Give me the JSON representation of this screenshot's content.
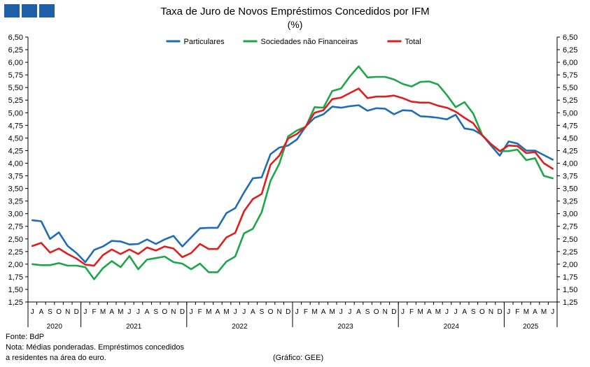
{
  "logo": {
    "icon": "logo-squares-icon",
    "color": "#1f5fa8"
  },
  "footer": {
    "source": "Fonte: BdP",
    "note_line1": "Nota: Médias ponderadas. Empréstimos concedidos",
    "note_line2": "a residentes na área do euro.",
    "credit": "(Gráfico: GEE)"
  },
  "chart_data": {
    "type": "line",
    "title": "Taxa de Juro de Novos Empréstimos  Concedidos por IFM",
    "subtitle": "(%)",
    "legend_position": "top-center",
    "grid": false,
    "ylim": [
      1.25,
      6.5
    ],
    "y_ticks": [
      "1,25",
      "1,50",
      "1,75",
      "2,00",
      "2,25",
      "2,50",
      "2,75",
      "3,00",
      "3,25",
      "3,50",
      "3,75",
      "4,00",
      "4,25",
      "4,50",
      "4,75",
      "5,00",
      "5,25",
      "5,50",
      "5,75",
      "6,00",
      "6,25",
      "6,50"
    ],
    "x_month_labels": [
      "J",
      "A",
      "S",
      "O",
      "N",
      "D",
      "J",
      "F",
      "M",
      "A",
      "M",
      "J",
      "J",
      "A",
      "S",
      "O",
      "N",
      "D",
      "J",
      "F",
      "M",
      "A",
      "M",
      "J",
      "J",
      "A",
      "S",
      "O",
      "N",
      "D",
      "J",
      "F",
      "M",
      "A",
      "M",
      "J",
      "J",
      "A",
      "S",
      "O",
      "N",
      "D",
      "J",
      "F",
      "M",
      "A",
      "M",
      "J",
      "J",
      "A",
      "S",
      "O",
      "N",
      "D",
      "J",
      "F",
      "M",
      "A",
      "M",
      "J"
    ],
    "years": [
      {
        "label": "2020",
        "months": 6
      },
      {
        "label": "2021",
        "months": 12
      },
      {
        "label": "2022",
        "months": 12
      },
      {
        "label": "2023",
        "months": 12
      },
      {
        "label": "2024",
        "months": 12
      },
      {
        "label": "2025",
        "months": 6
      }
    ],
    "series": [
      {
        "name": "Particulares",
        "color": "#1f6db5",
        "values": [
          2.87,
          2.85,
          2.5,
          2.63,
          2.36,
          2.22,
          2.04,
          2.28,
          2.35,
          2.46,
          2.45,
          2.39,
          2.4,
          2.49,
          2.4,
          2.49,
          2.56,
          2.35,
          2.53,
          2.71,
          2.72,
          2.72,
          3.01,
          3.11,
          3.42,
          3.7,
          3.72,
          4.18,
          4.31,
          4.35,
          4.47,
          4.73,
          4.9,
          4.97,
          5.12,
          5.1,
          5.13,
          5.15,
          5.04,
          5.09,
          5.08,
          4.97,
          5.05,
          5.04,
          4.93,
          4.92,
          4.9,
          4.87,
          4.96,
          4.69,
          4.66,
          4.56,
          4.35,
          4.15,
          4.43,
          4.39,
          4.25,
          4.25,
          4.16,
          4.07
        ]
      },
      {
        "name": "Sociedades não Financeiras",
        "color": "#1fa64a",
        "values": [
          2.0,
          1.98,
          1.98,
          2.02,
          1.97,
          1.97,
          1.94,
          1.7,
          1.92,
          2.06,
          1.94,
          2.16,
          1.9,
          2.09,
          2.12,
          2.15,
          2.04,
          2.01,
          1.9,
          2.01,
          1.84,
          1.84,
          2.05,
          2.15,
          2.61,
          2.7,
          3.03,
          3.65,
          3.99,
          4.53,
          4.65,
          4.72,
          5.11,
          5.1,
          5.43,
          5.48,
          5.72,
          5.92,
          5.7,
          5.71,
          5.71,
          5.66,
          5.57,
          5.52,
          5.61,
          5.62,
          5.56,
          5.35,
          5.11,
          5.21,
          4.98,
          4.56,
          4.38,
          4.24,
          4.24,
          4.27,
          4.06,
          4.1,
          3.75,
          3.7
        ]
      },
      {
        "name": "Total",
        "color": "#e01e1e",
        "values": [
          2.36,
          2.42,
          2.23,
          2.31,
          2.2,
          2.11,
          1.99,
          1.97,
          2.18,
          2.29,
          2.2,
          2.29,
          2.2,
          2.33,
          2.27,
          2.35,
          2.31,
          2.14,
          2.22,
          2.4,
          2.3,
          2.3,
          2.53,
          2.62,
          3.05,
          3.29,
          3.39,
          3.97,
          4.15,
          4.49,
          4.58,
          4.73,
          5.0,
          5.05,
          5.27,
          5.3,
          5.39,
          5.48,
          5.29,
          5.32,
          5.32,
          5.34,
          5.29,
          5.22,
          5.2,
          5.2,
          5.14,
          5.1,
          5.02,
          4.9,
          4.79,
          4.55,
          4.38,
          4.24,
          4.35,
          4.34,
          4.2,
          4.22,
          4.0,
          3.89
        ]
      }
    ]
  }
}
